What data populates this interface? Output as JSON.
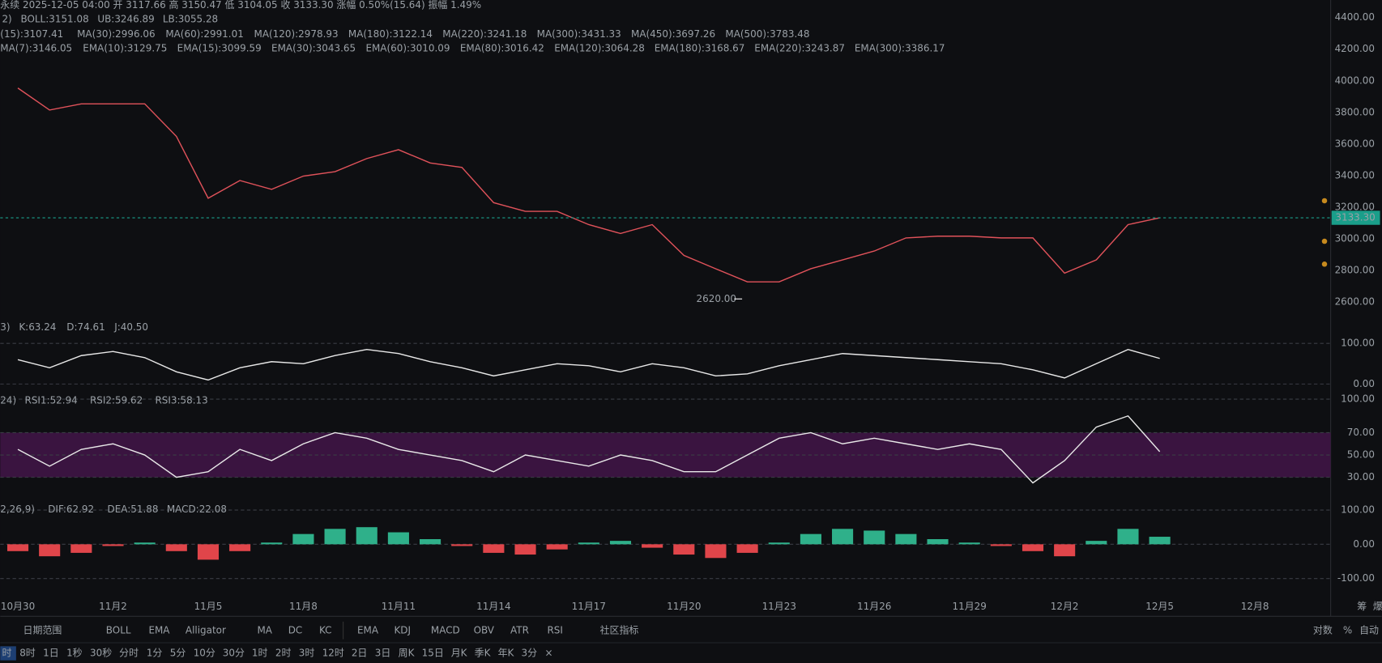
{
  "header": {
    "summary": "永续  2025-12-05 04:00  开 3117.66  高 3150.47  低 3104.05  收 3133.30  涨幅 0.50%(15.64)  振幅 1.49%",
    "boll_legend": [
      {
        "text": "2)",
        "color": "#9aa0a6"
      },
      {
        "text": "BOLL:3151.08",
        "color": "#e8e8e8"
      },
      {
        "text": "UB:3246.89",
        "color": "#f0d84a"
      },
      {
        "text": "LB:3055.28",
        "color": "#d65bc4"
      }
    ],
    "ma_legend": [
      {
        "text": "(15):3107.41",
        "color": "#e8e8e8"
      },
      {
        "text": "MA(30):2996.06",
        "color": "#f0d84a"
      },
      {
        "text": "MA(60):2991.01",
        "color": "#d65bc4"
      },
      {
        "text": "MA(120):2978.93",
        "color": "#4fa3e0"
      },
      {
        "text": "MA(180):3122.14",
        "color": "#e8e8e8"
      },
      {
        "text": "MA(220):3241.18",
        "color": "#ef7a8a"
      },
      {
        "text": "MA(300):3431.33",
        "color": "#32c6d0"
      },
      {
        "text": "MA(450):3697.26",
        "color": "#f07a2a"
      },
      {
        "text": "MA(500):3783.48",
        "color": "#b39af0"
      }
    ],
    "ema_legend": [
      {
        "text": "MA(7):3146.05",
        "color": "#e8e8e8"
      },
      {
        "text": "EMA(10):3129.75",
        "color": "#f0d84a"
      },
      {
        "text": "EMA(15):3099.59",
        "color": "#d65bc4"
      },
      {
        "text": "EMA(30):3043.65",
        "color": "#4fa3e0"
      },
      {
        "text": "EMA(60):3010.09",
        "color": "#e6e08a"
      },
      {
        "text": "EMA(80):3016.42",
        "color": "#ef7a8a"
      },
      {
        "text": "EMA(120):3064.28",
        "color": "#32c6d0"
      },
      {
        "text": "EMA(180):3168.67",
        "color": "#f07a2a"
      },
      {
        "text": "EMA(220):3243.87",
        "color": "#b39af0"
      },
      {
        "text": "EMA(300):3386.17",
        "color": "#9aa0a6"
      }
    ]
  },
  "x_axis": {
    "categories": [
      "10月30",
      null,
      null,
      "11月2",
      null,
      null,
      "11月5",
      null,
      null,
      "11月8",
      null,
      null,
      "11月11",
      null,
      null,
      "11月14",
      null,
      null,
      "11月17",
      null,
      null,
      "11月20",
      null,
      null,
      "11月23",
      null,
      null,
      "11月26",
      null,
      null,
      "11月29",
      null,
      null,
      "12月2",
      null,
      null,
      "12月5",
      null,
      null,
      "12月8"
    ],
    "right_labels": [
      "筹",
      "爆"
    ]
  },
  "price_panel": {
    "ylim": [
      2478,
      4511
    ],
    "yticks": [
      {
        "value": 4400,
        "label": "4400.00"
      },
      {
        "value": 4200,
        "label": "4200.00"
      },
      {
        "value": 4000,
        "label": "4000.00"
      },
      {
        "value": 3800,
        "label": "3800.00"
      },
      {
        "value": 3600,
        "label": "3600.00"
      },
      {
        "value": 3400,
        "label": "3400.00"
      },
      {
        "value": 3200,
        "label": "3200.00"
      },
      {
        "value": 3000,
        "label": "3000.00"
      },
      {
        "value": 2800,
        "label": "2800.00"
      },
      {
        "value": 2600,
        "label": "2600.00"
      }
    ],
    "color": "#e0525a",
    "closes": [
      3954,
      3815,
      3854,
      3854,
      3854,
      3648,
      3257,
      3369,
      3313,
      3397,
      3425,
      3508,
      3564,
      3480,
      3452,
      3229,
      3174,
      3174,
      3090,
      3034,
      3090,
      2895,
      2811,
      2728,
      2728,
      2811,
      2867,
      2923,
      3006,
      3017,
      3017,
      3006,
      3006,
      2783,
      2867,
      3090,
      3133,
      null,
      null,
      null
    ],
    "current_price": {
      "value": 3133.3,
      "label": "3133.30"
    },
    "low_annotation": {
      "value": 2620,
      "label": "2620.00"
    }
  },
  "kdj_panel": {
    "legend": [
      {
        "text": "3)",
        "color": "#9aa0a6"
      },
      {
        "text": "K:63.24",
        "color": "#e8e8e8"
      },
      {
        "text": "D:74.61",
        "color": "#f0d84a"
      },
      {
        "text": "J:40.50",
        "color": "#d65bc4"
      }
    ],
    "ylim": [
      -30,
      139
    ],
    "yticks": [
      {
        "value": 100,
        "label": "100.00"
      },
      {
        "value": 0,
        "label": "0.00"
      }
    ],
    "color": "#e8e8e8",
    "k_values": [
      60,
      40,
      70,
      80,
      65,
      30,
      10,
      40,
      55,
      50,
      70,
      85,
      75,
      55,
      40,
      20,
      35,
      50,
      45,
      30,
      50,
      40,
      20,
      25,
      45,
      60,
      75,
      70,
      65,
      60,
      55,
      50,
      35,
      15,
      50,
      85,
      63,
      null,
      null,
      null
    ]
  },
  "rsi_panel": {
    "legend": [
      {
        "text": "24)",
        "color": "#9aa0a6"
      },
      {
        "text": "RSI1:52.94",
        "color": "#e8e8e8"
      },
      {
        "text": "RSI2:59.62",
        "color": "#f0d84a"
      },
      {
        "text": "RSI3:58.13",
        "color": "#d65bc4"
      }
    ],
    "ylim": [
      8,
      105
    ],
    "yticks": [
      {
        "value": 100,
        "label": "100.00"
      },
      {
        "value": 70,
        "label": "70.00"
      },
      {
        "value": 50,
        "label": "50.00"
      },
      {
        "value": 30,
        "label": "30.00"
      }
    ],
    "band": [
      70,
      30
    ],
    "band_color": "#3a1440",
    "color": "#e8e8e8",
    "rsi1_values": [
      55,
      40,
      55,
      60,
      50,
      30,
      35,
      55,
      45,
      60,
      70,
      65,
      55,
      50,
      45,
      35,
      50,
      45,
      40,
      50,
      45,
      35,
      35,
      50,
      65,
      70,
      60,
      65,
      60,
      55,
      60,
      55,
      25,
      45,
      75,
      85,
      53,
      null,
      null,
      null
    ]
  },
  "macd_panel": {
    "legend": [
      {
        "text": "2,26,9)",
        "color": "#9aa0a6"
      },
      {
        "text": "DIF:62.92",
        "color": "#e8e8e8"
      },
      {
        "text": "DEA:51.88",
        "color": "#f0d84a"
      },
      {
        "text": "MACD:22.08",
        "color": "#2fb08a"
      }
    ],
    "ylim": [
      -159,
      111
    ],
    "yticks": [
      {
        "value": 100,
        "label": "100.00"
      },
      {
        "value": 0,
        "label": "0.00"
      },
      {
        "value": -100,
        "label": "-100.00"
      }
    ],
    "up_color": "#2fb08a",
    "down_color": "#e0454a",
    "histogram": [
      -20,
      -35,
      -25,
      -5,
      5,
      -20,
      -45,
      -20,
      5,
      30,
      45,
      50,
      35,
      15,
      -5,
      -25,
      -30,
      -15,
      5,
      10,
      -10,
      -30,
      -40,
      -25,
      5,
      30,
      45,
      40,
      30,
      15,
      5,
      -5,
      -20,
      -35,
      10,
      45,
      22,
      null,
      null,
      null
    ]
  },
  "toolbar": {
    "range_label": "日期范围",
    "indicators": [
      {
        "text": "BOLL",
        "color": "#3d86f5"
      },
      {
        "text": "EMA",
        "color": "#3d86f5"
      },
      {
        "text": "Alligator",
        "color": "#8a8f96"
      },
      {
        "text": "MA",
        "color": "#3d86f5"
      },
      {
        "text": "DC",
        "color": "#8a8f96"
      },
      {
        "text": "KC",
        "color": "#8a8f96"
      },
      {
        "text": "EMA",
        "color": "#8a8f96"
      },
      {
        "text": "KDJ",
        "color": "#3d86f5"
      },
      {
        "text": "MACD",
        "color": "#3d86f5"
      },
      {
        "text": "OBV",
        "color": "#8a8f96"
      },
      {
        "text": "ATR",
        "color": "#8a8f96"
      },
      {
        "text": "RSI",
        "color": "#3d86f5"
      }
    ],
    "community": "社区指标",
    "right": [
      {
        "text": "对数",
        "color": "#b0b4ba"
      },
      {
        "text": "%",
        "color": "#b0b4ba"
      },
      {
        "text": "自动",
        "color": "#3d86f5"
      }
    ],
    "intervals": [
      "时",
      "8时",
      "1日",
      "1秒",
      "30秒",
      "分时",
      "1分",
      "5分",
      "10分",
      "30分",
      "1时",
      "2时",
      "3时",
      "12时",
      "2日",
      "3日",
      "周K",
      "15日",
      "月K",
      "季K",
      "年K",
      "3分",
      "×"
    ]
  }
}
